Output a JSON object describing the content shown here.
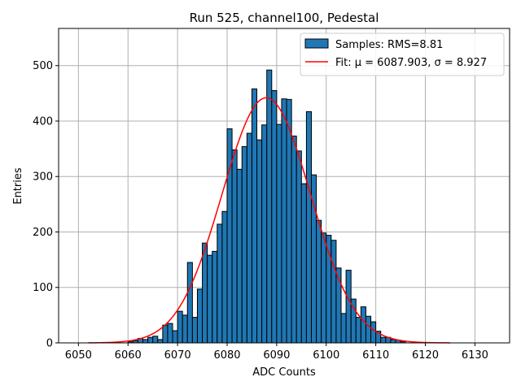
{
  "chart_data": {
    "type": "bar",
    "title": "Run 525, channel100, Pedestal",
    "xlabel": "ADC Counts",
    "ylabel": "Entries",
    "xlim": [
      6046,
      6137
    ],
    "ylim": [
      0,
      567
    ],
    "xticks": [
      6050,
      6060,
      6070,
      6080,
      6090,
      6100,
      6110,
      6120,
      6130
    ],
    "yticks": [
      0,
      100,
      200,
      300,
      400,
      500
    ],
    "grid": true,
    "legend_position": "top-right",
    "colors": {
      "bar": "#1f77b4",
      "bar_edge": "#000000",
      "fit": "#ff0000",
      "grid": "#b0b0b0"
    },
    "histogram": {
      "name": "Samples: RMS=8.81",
      "bin_width": 1,
      "bins": [
        [
          6060,
          2
        ],
        [
          6061,
          4
        ],
        [
          6062,
          8
        ],
        [
          6063,
          6
        ],
        [
          6064,
          10
        ],
        [
          6065,
          12
        ],
        [
          6066,
          6
        ],
        [
          6067,
          32
        ],
        [
          6068,
          35
        ],
        [
          6069,
          22
        ],
        [
          6070,
          57
        ],
        [
          6071,
          50
        ],
        [
          6072,
          145
        ],
        [
          6073,
          46
        ],
        [
          6074,
          97
        ],
        [
          6075,
          180
        ],
        [
          6076,
          158
        ],
        [
          6077,
          165
        ],
        [
          6078,
          214
        ],
        [
          6079,
          237
        ],
        [
          6080,
          386
        ],
        [
          6081,
          348
        ],
        [
          6082,
          313
        ],
        [
          6083,
          354
        ],
        [
          6084,
          378
        ],
        [
          6085,
          458
        ],
        [
          6086,
          366
        ],
        [
          6087,
          393
        ],
        [
          6088,
          492
        ],
        [
          6089,
          455
        ],
        [
          6090,
          394
        ],
        [
          6091,
          440
        ],
        [
          6092,
          439
        ],
        [
          6093,
          373
        ],
        [
          6094,
          346
        ],
        [
          6095,
          287
        ],
        [
          6096,
          417
        ],
        [
          6097,
          303
        ],
        [
          6098,
          221
        ],
        [
          6099,
          198
        ],
        [
          6100,
          194
        ],
        [
          6101,
          185
        ],
        [
          6102,
          135
        ],
        [
          6103,
          53
        ],
        [
          6104,
          131
        ],
        [
          6105,
          79
        ],
        [
          6106,
          46
        ],
        [
          6107,
          65
        ],
        [
          6108,
          48
        ],
        [
          6109,
          38
        ],
        [
          6110,
          21
        ],
        [
          6111,
          10
        ],
        [
          6112,
          10
        ],
        [
          6113,
          6
        ],
        [
          6114,
          5
        ],
        [
          6115,
          2
        ]
      ]
    },
    "fit": {
      "name": "Fit: μ = 6087.903, σ = 8.927",
      "mu": 6087.903,
      "sigma": 8.927,
      "amplitude": 442,
      "x_range": [
        6052,
        6125
      ]
    }
  }
}
